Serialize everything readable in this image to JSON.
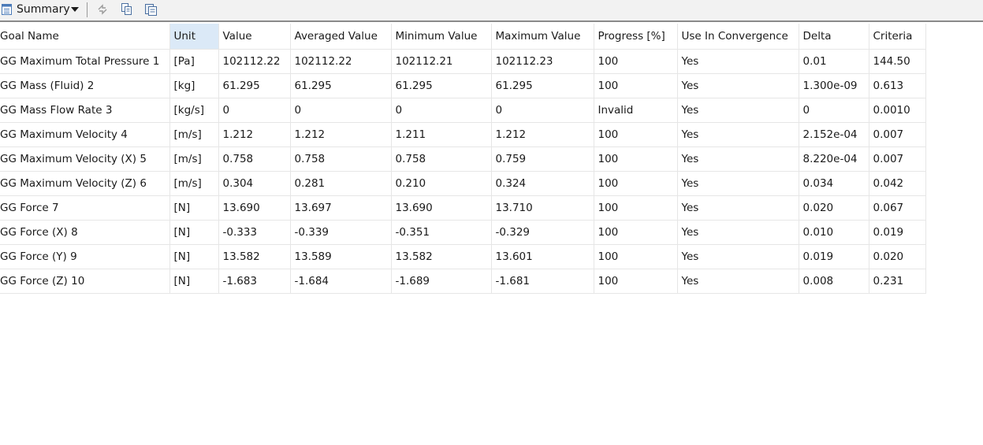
{
  "toolbar": {
    "title": "Summary",
    "icons": [
      "document-icon",
      "chevron-down-icon",
      "refresh-icon",
      "copy-icon",
      "paste-icon"
    ]
  },
  "table": {
    "columns": [
      "Goal Name",
      "Unit",
      "Value",
      "Averaged Value",
      "Minimum Value",
      "Maximum Value",
      "Progress [%]",
      "Use In Convergence",
      "Delta",
      "Criteria"
    ],
    "selected_column": "Unit",
    "rows": [
      [
        "GG Maximum Total Pressure 1",
        "[Pa]",
        "102112.22",
        "102112.22",
        "102112.21",
        "102112.23",
        "100",
        "Yes",
        "0.01",
        "144.50"
      ],
      [
        "GG Mass (Fluid) 2",
        "[kg]",
        "61.295",
        "61.295",
        "61.295",
        "61.295",
        "100",
        "Yes",
        "1.300e-09",
        "0.613"
      ],
      [
        "GG Mass Flow Rate 3",
        "[kg/s]",
        "0",
        "0",
        "0",
        "0",
        "Invalid",
        "Yes",
        "0",
        "0.0010"
      ],
      [
        "GG Maximum Velocity 4",
        "[m/s]",
        "1.212",
        "1.212",
        "1.211",
        "1.212",
        "100",
        "Yes",
        "2.152e-04",
        "0.007"
      ],
      [
        "GG Maximum Velocity (X) 5",
        "[m/s]",
        "0.758",
        "0.758",
        "0.758",
        "0.759",
        "100",
        "Yes",
        "8.220e-04",
        "0.007"
      ],
      [
        "GG Maximum Velocity (Z) 6",
        "[m/s]",
        "0.304",
        "0.281",
        "0.210",
        "0.324",
        "100",
        "Yes",
        "0.034",
        "0.042"
      ],
      [
        "GG Force 7",
        "[N]",
        "13.690",
        "13.697",
        "13.690",
        "13.710",
        "100",
        "Yes",
        "0.020",
        "0.067"
      ],
      [
        "GG Force (X) 8",
        "[N]",
        "-0.333",
        "-0.339",
        "-0.351",
        "-0.329",
        "100",
        "Yes",
        "0.010",
        "0.019"
      ],
      [
        "GG Force (Y) 9",
        "[N]",
        "13.582",
        "13.589",
        "13.582",
        "13.601",
        "100",
        "Yes",
        "0.019",
        "0.020"
      ],
      [
        "GG Force (Z) 10",
        "[N]",
        "-1.683",
        "-1.684",
        "-1.689",
        "-1.681",
        "100",
        "Yes",
        "0.008",
        "0.231"
      ]
    ]
  }
}
